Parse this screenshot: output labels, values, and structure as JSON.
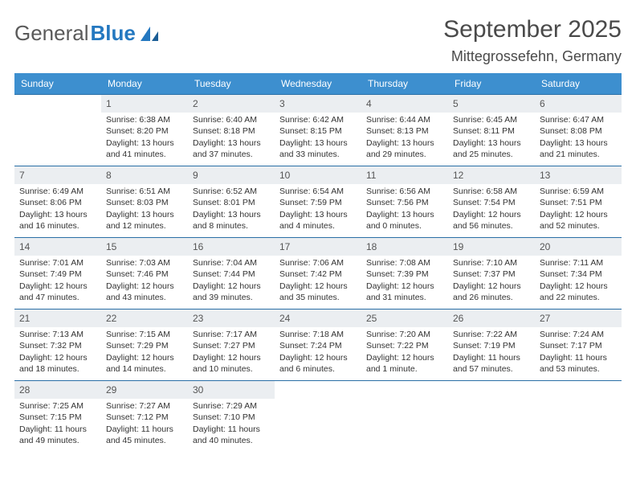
{
  "brand": {
    "part1": "General",
    "part2": "Blue"
  },
  "title": "September 2025",
  "location": "Mittegrossefehn, Germany",
  "day_names": [
    "Sunday",
    "Monday",
    "Tuesday",
    "Wednesday",
    "Thursday",
    "Friday",
    "Saturday"
  ],
  "colors": {
    "header_bg": "#3d8fcf",
    "header_text": "#ffffff",
    "daynum_bg": "#ebeef1",
    "border": "#2a6fa6",
    "logo_gray": "#5a5a5a",
    "logo_blue": "#2478c0"
  },
  "weeks": [
    [
      {
        "n": "",
        "empty": true
      },
      {
        "n": "1",
        "sunrise": "6:38 AM",
        "sunset": "8:20 PM",
        "daylight": "13 hours and 41 minutes."
      },
      {
        "n": "2",
        "sunrise": "6:40 AM",
        "sunset": "8:18 PM",
        "daylight": "13 hours and 37 minutes."
      },
      {
        "n": "3",
        "sunrise": "6:42 AM",
        "sunset": "8:15 PM",
        "daylight": "13 hours and 33 minutes."
      },
      {
        "n": "4",
        "sunrise": "6:44 AM",
        "sunset": "8:13 PM",
        "daylight": "13 hours and 29 minutes."
      },
      {
        "n": "5",
        "sunrise": "6:45 AM",
        "sunset": "8:11 PM",
        "daylight": "13 hours and 25 minutes."
      },
      {
        "n": "6",
        "sunrise": "6:47 AM",
        "sunset": "8:08 PM",
        "daylight": "13 hours and 21 minutes."
      }
    ],
    [
      {
        "n": "7",
        "sunrise": "6:49 AM",
        "sunset": "8:06 PM",
        "daylight": "13 hours and 16 minutes."
      },
      {
        "n": "8",
        "sunrise": "6:51 AM",
        "sunset": "8:03 PM",
        "daylight": "13 hours and 12 minutes."
      },
      {
        "n": "9",
        "sunrise": "6:52 AM",
        "sunset": "8:01 PM",
        "daylight": "13 hours and 8 minutes."
      },
      {
        "n": "10",
        "sunrise": "6:54 AM",
        "sunset": "7:59 PM",
        "daylight": "13 hours and 4 minutes."
      },
      {
        "n": "11",
        "sunrise": "6:56 AM",
        "sunset": "7:56 PM",
        "daylight": "13 hours and 0 minutes."
      },
      {
        "n": "12",
        "sunrise": "6:58 AM",
        "sunset": "7:54 PM",
        "daylight": "12 hours and 56 minutes."
      },
      {
        "n": "13",
        "sunrise": "6:59 AM",
        "sunset": "7:51 PM",
        "daylight": "12 hours and 52 minutes."
      }
    ],
    [
      {
        "n": "14",
        "sunrise": "7:01 AM",
        "sunset": "7:49 PM",
        "daylight": "12 hours and 47 minutes."
      },
      {
        "n": "15",
        "sunrise": "7:03 AM",
        "sunset": "7:46 PM",
        "daylight": "12 hours and 43 minutes."
      },
      {
        "n": "16",
        "sunrise": "7:04 AM",
        "sunset": "7:44 PM",
        "daylight": "12 hours and 39 minutes."
      },
      {
        "n": "17",
        "sunrise": "7:06 AM",
        "sunset": "7:42 PM",
        "daylight": "12 hours and 35 minutes."
      },
      {
        "n": "18",
        "sunrise": "7:08 AM",
        "sunset": "7:39 PM",
        "daylight": "12 hours and 31 minutes."
      },
      {
        "n": "19",
        "sunrise": "7:10 AM",
        "sunset": "7:37 PM",
        "daylight": "12 hours and 26 minutes."
      },
      {
        "n": "20",
        "sunrise": "7:11 AM",
        "sunset": "7:34 PM",
        "daylight": "12 hours and 22 minutes."
      }
    ],
    [
      {
        "n": "21",
        "sunrise": "7:13 AM",
        "sunset": "7:32 PM",
        "daylight": "12 hours and 18 minutes."
      },
      {
        "n": "22",
        "sunrise": "7:15 AM",
        "sunset": "7:29 PM",
        "daylight": "12 hours and 14 minutes."
      },
      {
        "n": "23",
        "sunrise": "7:17 AM",
        "sunset": "7:27 PM",
        "daylight": "12 hours and 10 minutes."
      },
      {
        "n": "24",
        "sunrise": "7:18 AM",
        "sunset": "7:24 PM",
        "daylight": "12 hours and 6 minutes."
      },
      {
        "n": "25",
        "sunrise": "7:20 AM",
        "sunset": "7:22 PM",
        "daylight": "12 hours and 1 minute."
      },
      {
        "n": "26",
        "sunrise": "7:22 AM",
        "sunset": "7:19 PM",
        "daylight": "11 hours and 57 minutes."
      },
      {
        "n": "27",
        "sunrise": "7:24 AM",
        "sunset": "7:17 PM",
        "daylight": "11 hours and 53 minutes."
      }
    ],
    [
      {
        "n": "28",
        "sunrise": "7:25 AM",
        "sunset": "7:15 PM",
        "daylight": "11 hours and 49 minutes."
      },
      {
        "n": "29",
        "sunrise": "7:27 AM",
        "sunset": "7:12 PM",
        "daylight": "11 hours and 45 minutes."
      },
      {
        "n": "30",
        "sunrise": "7:29 AM",
        "sunset": "7:10 PM",
        "daylight": "11 hours and 40 minutes."
      },
      {
        "n": "",
        "empty": true
      },
      {
        "n": "",
        "empty": true
      },
      {
        "n": "",
        "empty": true
      },
      {
        "n": "",
        "empty": true
      }
    ]
  ],
  "labels": {
    "sunrise": "Sunrise:",
    "sunset": "Sunset:",
    "daylight": "Daylight:"
  }
}
